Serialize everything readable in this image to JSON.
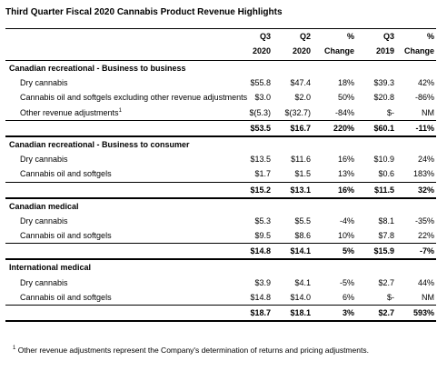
{
  "title": "Third Quarter Fiscal 2020 Cannabis Product Revenue Highlights",
  "columns": [
    {
      "line1": "Q3",
      "line2": "2020"
    },
    {
      "line1": "Q2",
      "line2": "2020"
    },
    {
      "line1": "%",
      "line2": "Change"
    },
    {
      "line1": "Q3",
      "line2": "2019"
    },
    {
      "line1": "%",
      "line2": "Change"
    }
  ],
  "sections": [
    {
      "title": "Canadian recreational - Business to business",
      "rows": [
        {
          "label": "Dry cannabis",
          "sup": "",
          "values": [
            "$55.8",
            "$47.4",
            "18%",
            "$39.3",
            "42%"
          ]
        },
        {
          "label": "Cannabis oil and softgels excluding other revenue adjustments",
          "sup": "",
          "values": [
            "$3.0",
            "$2.0",
            "50%",
            "$20.8",
            "-86%"
          ]
        },
        {
          "label": "Other revenue adjustments",
          "sup": "1",
          "values": [
            "$(5.3)",
            "$(32.7)",
            "-84%",
            "$-",
            "NM"
          ]
        }
      ],
      "total": [
        "$53.5",
        "$16.7",
        "220%",
        "$60.1",
        "-11%"
      ]
    },
    {
      "title": "Canadian recreational - Business to consumer",
      "rows": [
        {
          "label": "Dry cannabis",
          "sup": "",
          "values": [
            "$13.5",
            "$11.6",
            "16%",
            "$10.9",
            "24%"
          ]
        },
        {
          "label": "Cannabis oil and softgels",
          "sup": "",
          "values": [
            "$1.7",
            "$1.5",
            "13%",
            "$0.6",
            "183%"
          ]
        }
      ],
      "total": [
        "$15.2",
        "$13.1",
        "16%",
        "$11.5",
        "32%"
      ]
    },
    {
      "title": "Canadian medical",
      "rows": [
        {
          "label": "Dry cannabis",
          "sup": "",
          "values": [
            "$5.3",
            "$5.5",
            "-4%",
            "$8.1",
            "-35%"
          ]
        },
        {
          "label": "Cannabis oil and softgels",
          "sup": "",
          "values": [
            "$9.5",
            "$8.6",
            "10%",
            "$7.8",
            "22%"
          ]
        }
      ],
      "total": [
        "$14.8",
        "$14.1",
        "5%",
        "$15.9",
        "-7%"
      ]
    },
    {
      "title": "International medical",
      "rows": [
        {
          "label": "Dry cannabis",
          "sup": "",
          "values": [
            "$3.9",
            "$4.1",
            "-5%",
            "$2.7",
            "44%"
          ]
        },
        {
          "label": "Cannabis oil and softgels",
          "sup": "",
          "values": [
            "$14.8",
            "$14.0",
            "6%",
            "$-",
            "NM"
          ]
        }
      ],
      "total": [
        "$18.7",
        "$18.1",
        "3%",
        "$2.7",
        "593%"
      ]
    }
  ],
  "footnote": {
    "sup": "1",
    "text": "Other revenue adjustments represent the Company's determination of returns and pricing adjustments."
  }
}
